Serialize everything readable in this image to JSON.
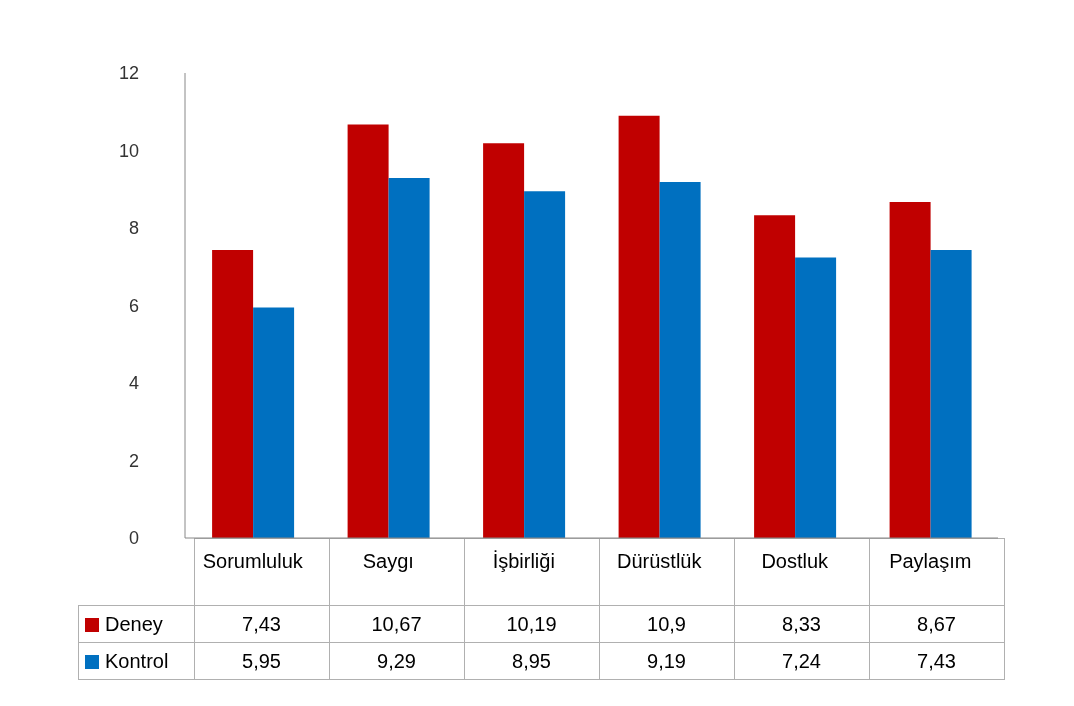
{
  "chart_data": {
    "type": "bar",
    "categories": [
      "Sorumluluk",
      "Saygı",
      "İşbirliği",
      "Dürüstlük",
      "Dostluk",
      "Paylaşım"
    ],
    "series": [
      {
        "name": "Deney",
        "color": "#c00000",
        "values": [
          7.43,
          10.67,
          10.19,
          10.9,
          8.33,
          8.67
        ],
        "value_labels": [
          "7,43",
          "10,67",
          "10,19",
          "10,9",
          "8,33",
          "8,67"
        ]
      },
      {
        "name": "Kontrol",
        "color": "#0070c0",
        "values": [
          5.95,
          9.29,
          8.95,
          9.19,
          7.24,
          7.43
        ],
        "value_labels": [
          "5,95",
          "9,29",
          "8,95",
          "9,19",
          "7,24",
          "7,43"
        ]
      }
    ],
    "ylim": [
      0,
      12
    ],
    "yticks": [
      0,
      2,
      4,
      6,
      8,
      10,
      12
    ],
    "legend": "bottom"
  }
}
